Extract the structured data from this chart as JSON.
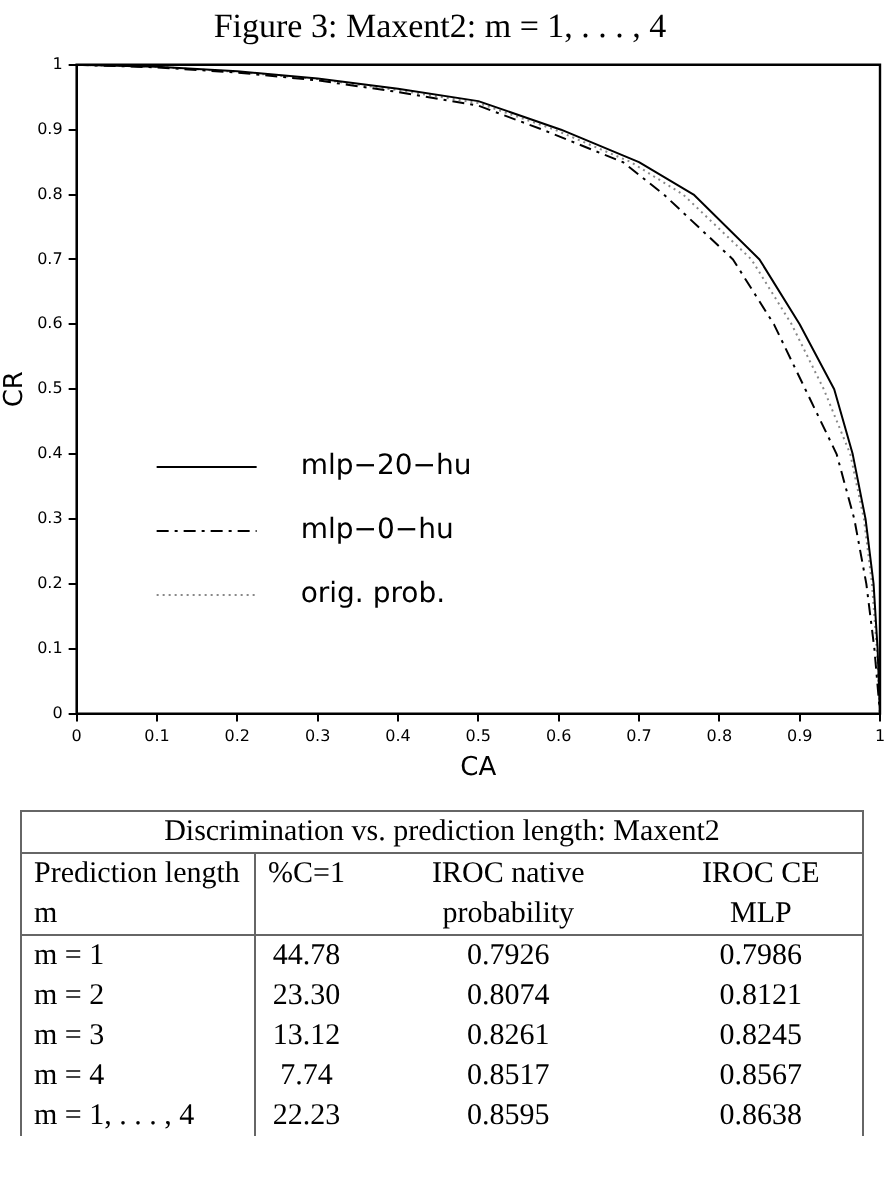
{
  "chart_data": [
    {
      "type": "line",
      "title": "Figure 3: Maxent2: m = 1, . . . , 4",
      "xlabel": "CA",
      "ylabel": "CR",
      "xlim": [
        0,
        1
      ],
      "ylim": [
        0,
        1
      ],
      "xticks": [
        0,
        0.1,
        0.2,
        0.3,
        0.4,
        0.5,
        0.6,
        0.7,
        0.8,
        0.9,
        1
      ],
      "yticks": [
        0,
        0.1,
        0.2,
        0.3,
        0.4,
        0.5,
        0.6,
        0.7,
        0.8,
        0.9,
        1
      ],
      "grid": false,
      "legend": "left",
      "marker": "none",
      "series": [
        {
          "name": "mlp−20−hu",
          "color": "#000000",
          "line_style": "solid",
          "x": [
            0,
            0.1,
            0.2,
            0.3,
            0.4,
            0.5,
            0.603,
            0.7,
            0.768,
            0.85,
            0.9,
            0.943,
            0.966,
            0.982,
            0.992,
            0.997,
            1
          ],
          "values": [
            1,
            0.997,
            0.99,
            0.979,
            0.963,
            0.944,
            0.9,
            0.85,
            0.8,
            0.7,
            0.6,
            0.5,
            0.4,
            0.3,
            0.2,
            0.1,
            0
          ]
        },
        {
          "name": "mlp−0−hu",
          "color": "#000000",
          "line_style": "dashed",
          "x": [
            0,
            0.1,
            0.2,
            0.3,
            0.4,
            0.5,
            0.58,
            0.68,
            0.731,
            0.817,
            0.868,
            0.907,
            0.946,
            0.968,
            0.983,
            0.993,
            1
          ],
          "values": [
            1,
            0.996,
            0.988,
            0.976,
            0.958,
            0.937,
            0.9,
            0.85,
            0.8,
            0.7,
            0.6,
            0.5,
            0.4,
            0.3,
            0.2,
            0.1,
            0
          ]
        },
        {
          "name": "orig. prob.",
          "color": "#888888",
          "line_style": "dotted",
          "x": [
            0,
            0.1,
            0.2,
            0.3,
            0.4,
            0.5,
            0.595,
            0.69,
            0.755,
            0.84,
            0.89,
            0.93,
            0.963,
            0.98,
            0.99,
            0.996,
            1
          ],
          "values": [
            1,
            0.997,
            0.989,
            0.978,
            0.961,
            0.941,
            0.9,
            0.85,
            0.8,
            0.7,
            0.6,
            0.5,
            0.4,
            0.3,
            0.2,
            0.1,
            0
          ]
        }
      ]
    },
    {
      "type": "other",
      "title": "Discrimination vs. prediction length: Maxent2",
      "annotations": [
        "Prediction length m",
        "%C=1",
        "IROC native probability",
        "IROC CE MLP",
        "m = 1",
        "44.78",
        "0.7926",
        "0.7986",
        "m = 2",
        "23.30",
        "0.8074",
        "0.8121",
        "m = 3",
        "13.12",
        "0.8261",
        "0.8245",
        "m = 4",
        "7.74",
        "0.8517",
        "0.8567",
        "m = 1, . . . , 4",
        "22.23",
        "0.8595",
        "0.8638"
      ]
    }
  ]
}
